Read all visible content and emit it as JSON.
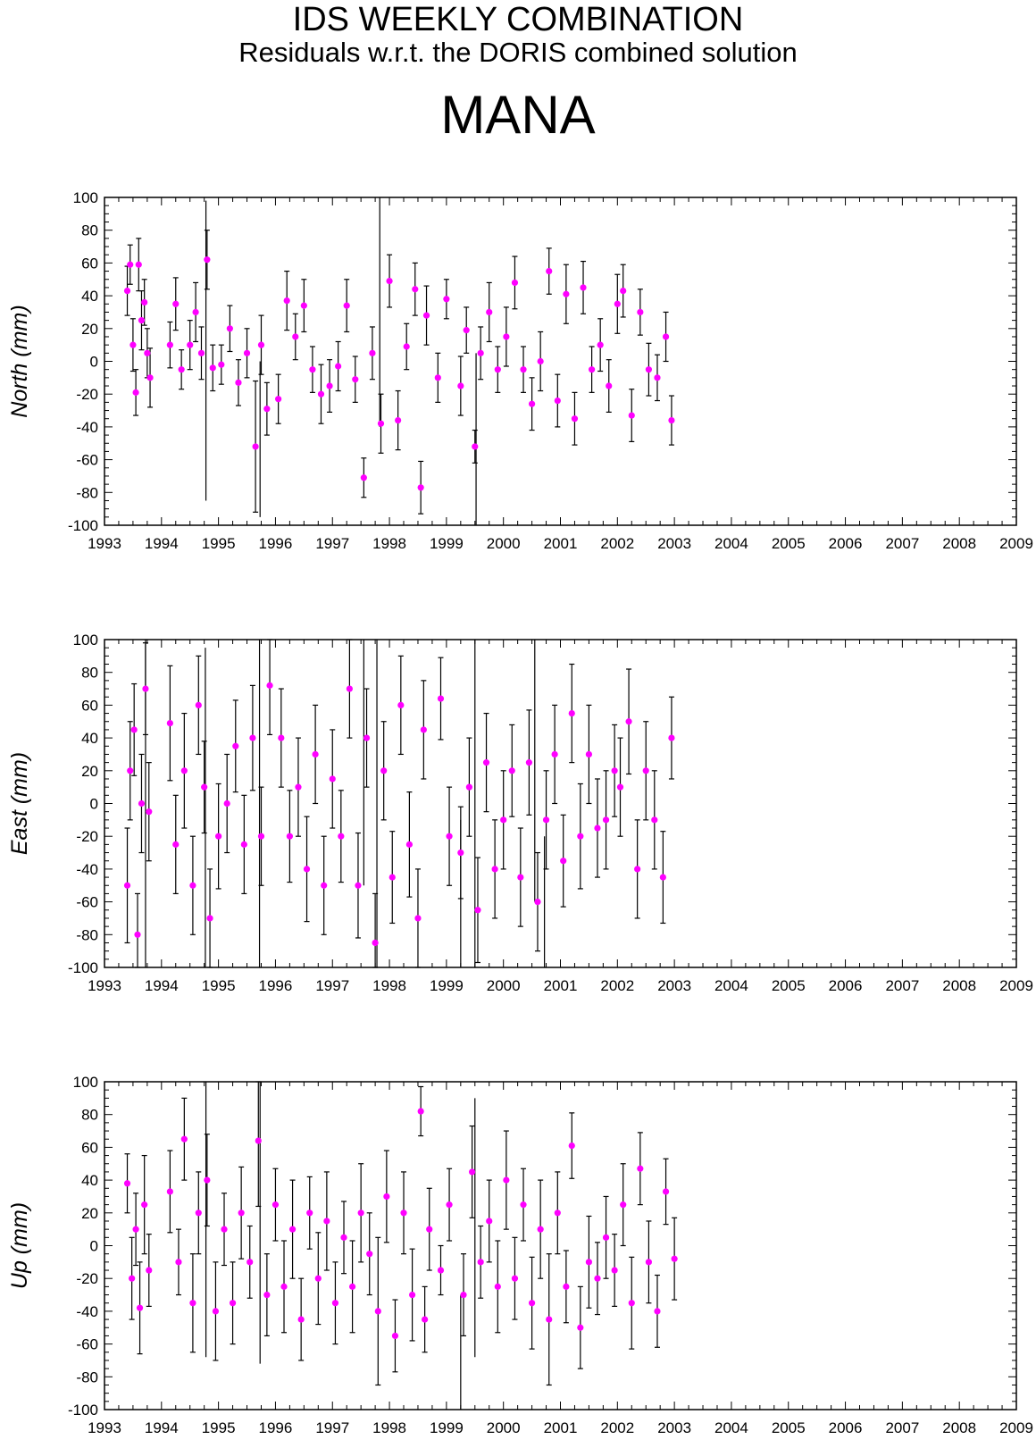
{
  "header": {
    "title": "IDS WEEKLY COMBINATION",
    "subtitle": "Residuals w.r.t. the DORIS combined solution",
    "station": "MANA"
  },
  "chart_data": [
    {
      "type": "scatter",
      "title": "",
      "xlabel": "",
      "ylabel": "North (mm)",
      "xlim": [
        1993,
        2009
      ],
      "ylim": [
        -100,
        100
      ],
      "xticks": [
        "1993",
        "1994",
        "1995",
        "1996",
        "1997",
        "1998",
        "1999",
        "2000",
        "2001",
        "2002",
        "2003",
        "2004",
        "2005",
        "2006",
        "2007",
        "2008",
        "2009"
      ],
      "yticks": [
        "100",
        "80",
        "60",
        "40",
        "20",
        "0",
        "-20",
        "-40",
        "-60",
        "-80",
        "-100"
      ],
      "grid": false,
      "series": [
        {
          "marker_color": "#ff00ff",
          "errorbar_color": "#000000",
          "x": [
            1993.4,
            1993.45,
            1993.5,
            1993.55,
            1993.6,
            1993.65,
            1993.7,
            1993.75,
            1993.8,
            1994.15,
            1994.25,
            1994.35,
            1994.5,
            1994.6,
            1994.7,
            1994.8,
            1994.9,
            1995.05,
            1995.2,
            1995.35,
            1995.5,
            1995.65,
            1995.75,
            1995.85,
            1996.05,
            1996.2,
            1996.35,
            1996.5,
            1996.65,
            1996.8,
            1996.95,
            1997.1,
            1997.25,
            1997.4,
            1997.55,
            1997.7,
            1997.85,
            1998.0,
            1998.15,
            1998.3,
            1998.45,
            1998.55,
            1998.65,
            1998.85,
            1999.0,
            1999.25,
            1999.35,
            1999.5,
            1999.6,
            1999.75,
            1999.9,
            2000.05,
            2000.2,
            2000.35,
            2000.5,
            2000.65,
            2000.8,
            2000.95,
            2001.1,
            2001.25,
            2001.4,
            2001.55,
            2001.7,
            2001.85,
            2002.0,
            2002.1,
            2002.25,
            2002.4,
            2002.55,
            2002.7,
            2002.85,
            2002.95
          ],
          "y": [
            43,
            59,
            10,
            -19,
            59,
            25,
            36,
            5,
            -10,
            10,
            35,
            -5,
            10,
            30,
            5,
            62,
            -4,
            -2,
            20,
            -13,
            5,
            -52,
            10,
            -29,
            -23,
            37,
            15,
            34,
            -5,
            -20,
            -15,
            -3,
            34,
            -11,
            -71,
            5,
            -38,
            49,
            -36,
            9,
            44,
            -77,
            28,
            -10,
            38,
            -15,
            19,
            -52,
            5,
            30,
            -5,
            15,
            48,
            -5,
            -26,
            0,
            55,
            -24,
            41,
            -35,
            45,
            -5,
            10,
            -15,
            35,
            43,
            -33,
            30,
            -5,
            -10,
            15,
            -36
          ],
          "err": [
            15,
            12,
            16,
            14,
            16,
            18,
            14,
            15,
            18,
            14,
            16,
            12,
            15,
            18,
            16,
            18,
            14,
            12,
            14,
            14,
            15,
            40,
            18,
            16,
            15,
            18,
            14,
            16,
            14,
            18,
            16,
            15,
            16,
            14,
            12,
            16,
            18,
            16,
            18,
            14,
            16,
            16,
            18,
            15,
            12,
            18,
            14,
            10,
            16,
            18,
            14,
            18,
            16,
            14,
            16,
            18,
            14,
            16,
            18,
            16,
            16,
            14,
            16,
            16,
            18,
            16,
            16,
            14,
            16,
            14,
            15,
            15
          ],
          "err_top": [
            97.9,
            97.9,
            97.9
          ],
          "bigbar_x": [
            1994.78,
            1995.73,
            1997.83,
            1999.52
          ],
          "bigbar_lo": [
            -85,
            -95,
            -40,
            -100
          ],
          "bigbar_hi": [
            98,
            0,
            100,
            5
          ]
        }
      ]
    },
    {
      "type": "scatter",
      "title": "",
      "xlabel": "",
      "ylabel": "East (mm)",
      "xlim": [
        1993,
        2009
      ],
      "ylim": [
        -100,
        100
      ],
      "xticks": [
        "1993",
        "1994",
        "1995",
        "1996",
        "1997",
        "1998",
        "1999",
        "2000",
        "2001",
        "2002",
        "2003",
        "2004",
        "2005",
        "2006",
        "2007",
        "2008",
        "2009"
      ],
      "yticks": [
        "100",
        "80",
        "60",
        "40",
        "20",
        "0",
        "-20",
        "-40",
        "-60",
        "-80",
        "-100"
      ],
      "grid": false,
      "series": [
        {
          "marker_color": "#ff00ff",
          "errorbar_color": "#000000",
          "x": [
            1993.4,
            1993.45,
            1993.52,
            1993.58,
            1993.65,
            1993.72,
            1993.78,
            1994.15,
            1994.25,
            1994.4,
            1994.55,
            1994.65,
            1994.75,
            1994.85,
            1995.0,
            1995.15,
            1995.3,
            1995.45,
            1995.6,
            1995.75,
            1995.9,
            1996.1,
            1996.25,
            1996.4,
            1996.55,
            1996.7,
            1996.85,
            1997.0,
            1997.15,
            1997.3,
            1997.45,
            1997.6,
            1997.75,
            1997.9,
            1998.05,
            1998.2,
            1998.35,
            1998.5,
            1998.6,
            1998.9,
            1999.05,
            1999.25,
            1999.4,
            1999.55,
            1999.7,
            1999.85,
            2000.0,
            2000.15,
            2000.3,
            2000.45,
            2000.6,
            2000.75,
            2000.9,
            2001.05,
            2001.2,
            2001.35,
            2001.5,
            2001.65,
            2001.8,
            2001.95,
            2002.05,
            2002.2,
            2002.35,
            2002.5,
            2002.65,
            2002.8,
            2002.95
          ],
          "y": [
            -50,
            20,
            45,
            -80,
            0,
            70,
            -5,
            49,
            -25,
            20,
            -50,
            60,
            10,
            -70,
            -20,
            0,
            35,
            -25,
            40,
            -20,
            72,
            40,
            -20,
            10,
            -40,
            30,
            -50,
            15,
            -20,
            70,
            -50,
            40,
            -85,
            20,
            -45,
            60,
            -25,
            -70,
            45,
            64,
            -20,
            -30,
            10,
            -65,
            25,
            -40,
            -10,
            20,
            -45,
            25,
            -60,
            -10,
            30,
            -35,
            55,
            -20,
            30,
            -15,
            -10,
            20,
            10,
            50,
            -40,
            20,
            -10,
            -45,
            40
          ],
          "err": [
            35,
            30,
            28,
            25,
            30,
            28,
            30,
            35,
            30,
            35,
            30,
            30,
            28,
            30,
            32,
            30,
            28,
            30,
            32,
            30,
            30,
            30,
            28,
            30,
            32,
            30,
            30,
            30,
            28,
            30,
            32,
            30,
            30,
            30,
            28,
            30,
            32,
            30,
            30,
            25,
            30,
            28,
            30,
            32,
            30,
            30,
            30,
            28,
            30,
            32,
            30,
            30,
            30,
            28,
            30,
            32,
            30,
            30,
            30,
            28,
            30,
            32,
            30,
            30,
            30,
            28,
            25
          ],
          "bigbar_x": [
            1993.72,
            1994.77,
            1995.72,
            1997.55,
            1997.78,
            1999.25,
            1999.5,
            2000.55,
            2000.72
          ],
          "bigbar_lo": [
            -100,
            -100,
            -100,
            -50,
            -100,
            -100,
            -100,
            -60,
            -100
          ],
          "bigbar_hi": [
            100,
            95,
            100,
            100,
            100,
            -10,
            100,
            100,
            -20
          ]
        }
      ]
    },
    {
      "type": "scatter",
      "title": "",
      "xlabel": "",
      "ylabel": "Up (mm)",
      "xlim": [
        1993,
        2009
      ],
      "ylim": [
        -100,
        100
      ],
      "xticks": [
        "1993",
        "1994",
        "1995",
        "1996",
        "1997",
        "1998",
        "1999",
        "2000",
        "2001",
        "2002",
        "2003",
        "2004",
        "2005",
        "2006",
        "2007",
        "2008",
        "2009"
      ],
      "yticks": [
        "100",
        "80",
        "60",
        "40",
        "20",
        "0",
        "-20",
        "-40",
        "-60",
        "-80",
        "-100"
      ],
      "grid": false,
      "series": [
        {
          "marker_color": "#ff00ff",
          "errorbar_color": "#000000",
          "x": [
            1993.4,
            1993.48,
            1993.55,
            1993.62,
            1993.7,
            1993.78,
            1994.15,
            1994.3,
            1994.4,
            1994.55,
            1994.65,
            1994.8,
            1994.95,
            1995.1,
            1995.25,
            1995.4,
            1995.55,
            1995.7,
            1995.85,
            1996.0,
            1996.15,
            1996.3,
            1996.45,
            1996.6,
            1996.75,
            1996.9,
            1997.05,
            1997.2,
            1997.35,
            1997.5,
            1997.65,
            1997.8,
            1997.95,
            1998.1,
            1998.25,
            1998.4,
            1998.55,
            1998.62,
            1998.7,
            1998.9,
            1999.05,
            1999.3,
            1999.45,
            1999.6,
            1999.75,
            1999.9,
            2000.05,
            2000.2,
            2000.35,
            2000.5,
            2000.65,
            2000.8,
            2000.95,
            2001.1,
            2001.2,
            2001.35,
            2001.5,
            2001.65,
            2001.8,
            2001.95,
            2002.1,
            2002.25,
            2002.4,
            2002.55,
            2002.7,
            2002.85,
            2003.0
          ],
          "y": [
            38,
            -20,
            10,
            -38,
            25,
            -15,
            33,
            -10,
            65,
            -35,
            20,
            40,
            -40,
            10,
            -35,
            20,
            -10,
            64,
            -30,
            25,
            -25,
            10,
            -45,
            20,
            -20,
            15,
            -35,
            5,
            -25,
            20,
            -5,
            -40,
            30,
            -55,
            20,
            -30,
            82,
            -45,
            10,
            -15,
            25,
            -30,
            45,
            -10,
            15,
            -25,
            40,
            -20,
            25,
            -35,
            10,
            -45,
            20,
            -25,
            61,
            -50,
            -10,
            -20,
            5,
            -15,
            25,
            -35,
            47,
            -10,
            -40,
            33,
            -8
          ],
          "err": [
            18,
            25,
            22,
            28,
            30,
            22,
            25,
            20,
            25,
            30,
            25,
            28,
            30,
            22,
            25,
            28,
            22,
            40,
            25,
            22,
            28,
            30,
            25,
            22,
            28,
            30,
            25,
            22,
            28,
            30,
            25,
            45,
            28,
            22,
            25,
            28,
            15,
            20,
            25,
            15,
            22,
            25,
            28,
            22,
            25,
            28,
            30,
            25,
            22,
            28,
            30,
            40,
            25,
            22,
            20,
            25,
            28,
            22,
            25,
            22,
            25,
            28,
            22,
            25,
            22,
            20,
            25
          ],
          "bigbar_x": [
            1994.78,
            1995.73,
            1999.25,
            1999.5
          ],
          "bigbar_lo": [
            -68,
            -72,
            -100,
            -68
          ],
          "bigbar_hi": [
            100,
            100,
            -30,
            90
          ]
        }
      ]
    }
  ]
}
